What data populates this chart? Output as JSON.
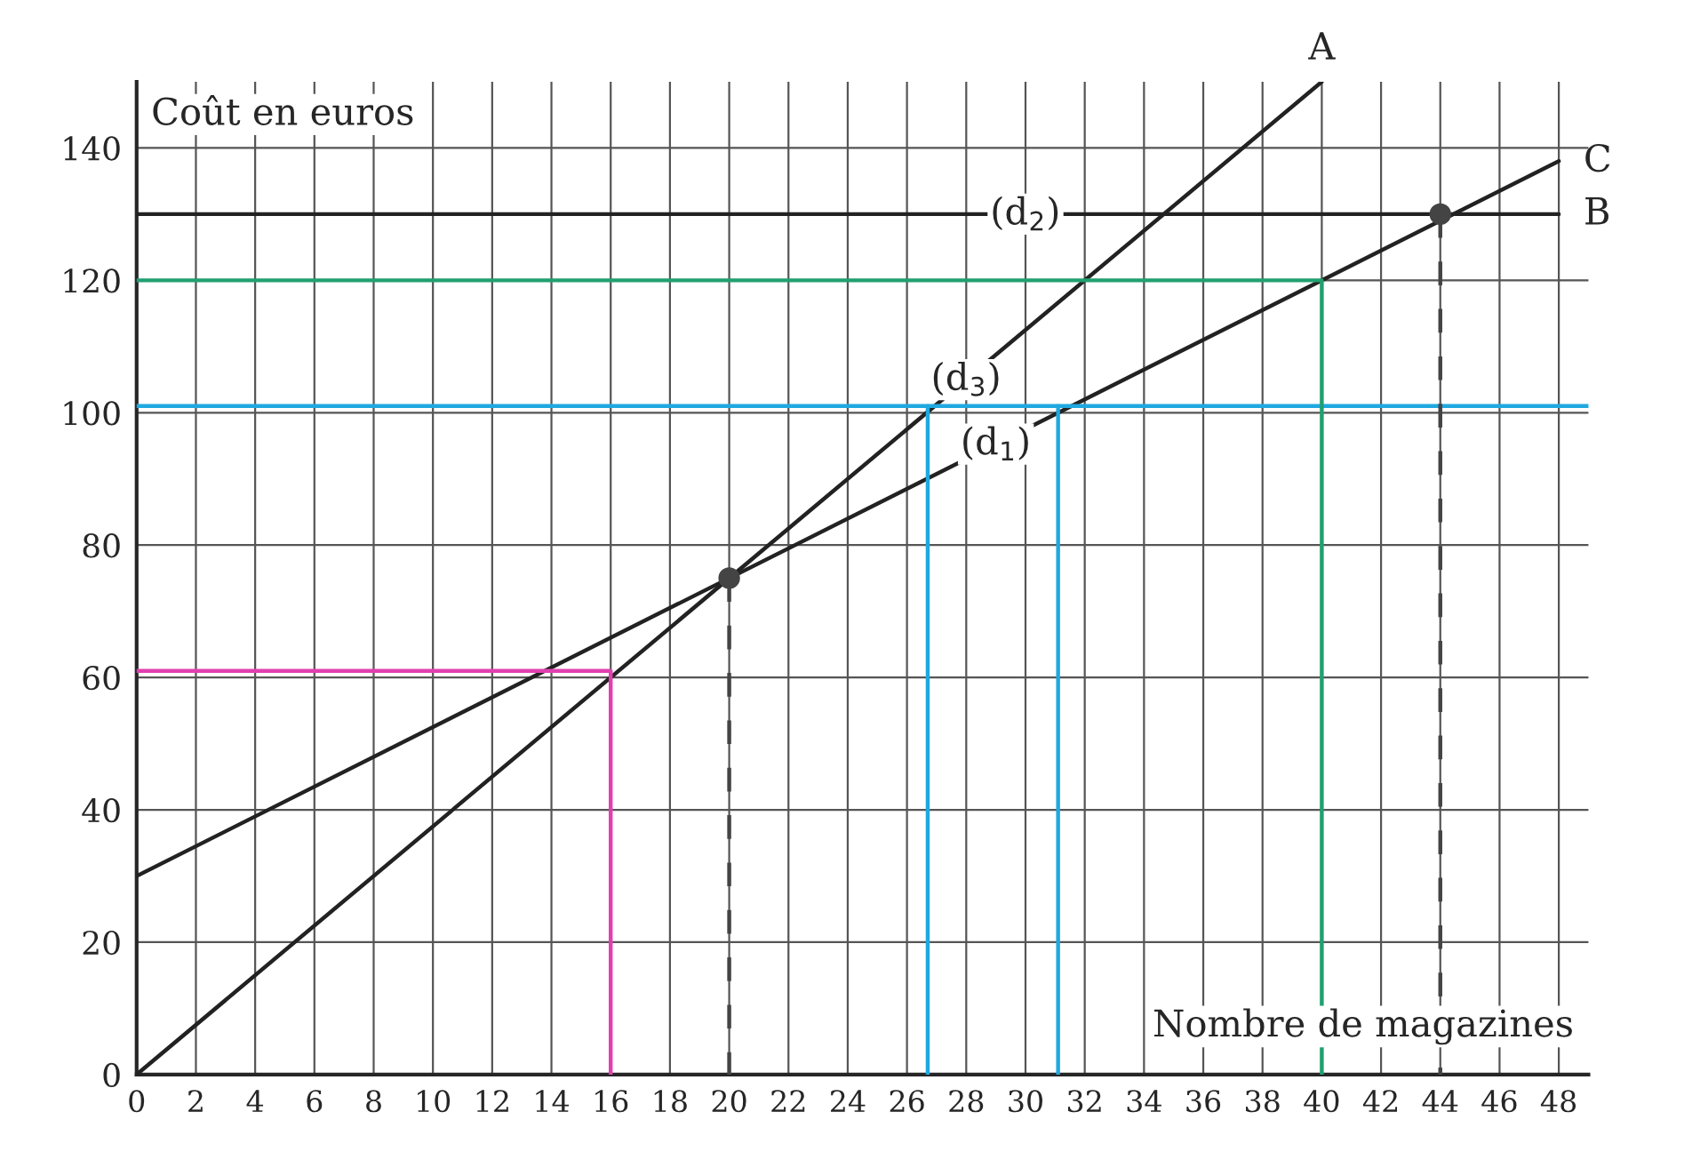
{
  "chart_data": {
    "type": "line",
    "xlabel": "Nombre de magazines",
    "ylabel": "Coût en euros",
    "xlim": [
      0,
      49
    ],
    "ylim": [
      0,
      150
    ],
    "xticks": [
      0,
      2,
      4,
      6,
      8,
      10,
      12,
      14,
      16,
      18,
      20,
      22,
      24,
      26,
      28,
      30,
      32,
      34,
      36,
      38,
      40,
      42,
      44,
      46,
      48
    ],
    "yticks": [
      0,
      20,
      40,
      60,
      80,
      100,
      120,
      140
    ],
    "grid": true,
    "legend": false,
    "marker": "none",
    "series": [
      {
        "color": "#222222",
        "x": [
          0,
          48
        ],
        "values": [
          30,
          138
        ]
      },
      {
        "color": "#222222",
        "x": [
          0,
          40
        ],
        "values": [
          0,
          150
        ]
      },
      {
        "color": "#222222",
        "x": [
          0,
          48
        ],
        "values": [
          130,
          130
        ]
      },
      {
        "color": "#e040b0",
        "x": [
          0,
          16,
          16
        ],
        "values": [
          61,
          61,
          0
        ]
      },
      {
        "color": "#20a8e0",
        "x": [
          0,
          49
        ],
        "values": [
          101,
          101
        ]
      },
      {
        "color": "#20a8e0",
        "x": [
          26.7,
          26.7
        ],
        "values": [
          101,
          0
        ]
      },
      {
        "color": "#20a8e0",
        "x": [
          31.1,
          31.1
        ],
        "values": [
          101,
          0
        ]
      },
      {
        "color": "#20a070",
        "x": [
          0,
          40,
          40
        ],
        "values": [
          120,
          120,
          0
        ]
      },
      {
        "color": "#444444",
        "line_style": "dashed",
        "x": [
          20,
          20
        ],
        "values": [
          75,
          0
        ]
      },
      {
        "color": "#444444",
        "line_style": "dashed",
        "x": [
          44,
          44
        ],
        "values": [
          130,
          0
        ]
      },
      {
        "type": "scatter",
        "color": "#444444",
        "marker": "circle",
        "x": [
          20,
          44
        ],
        "values": [
          75,
          130
        ]
      }
    ],
    "annotations": [
      {
        "text": "(d$_{1}$)",
        "x": 29,
        "y": 95.25
      },
      {
        "text": "(d$_{2}$)",
        "x": 30,
        "y": 130
      },
      {
        "text": "(d$_{3}$)",
        "x": 28,
        "y": 105
      },
      {
        "text": "A",
        "x": 40,
        "y": 150
      },
      {
        "text": "B",
        "x": 48,
        "y": 130
      },
      {
        "text": "C",
        "x": 48,
        "y": 138
      }
    ]
  }
}
